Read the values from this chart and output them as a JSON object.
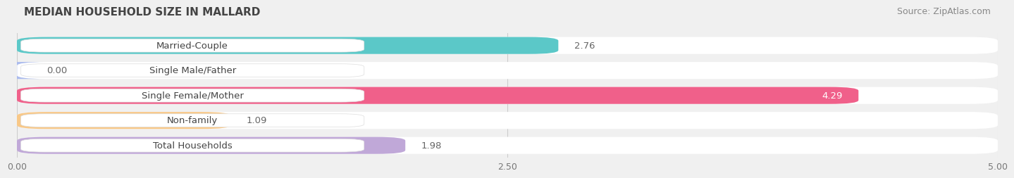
{
  "title": "MEDIAN HOUSEHOLD SIZE IN MALLARD",
  "source": "Source: ZipAtlas.com",
  "categories": [
    "Married-Couple",
    "Single Male/Father",
    "Single Female/Mother",
    "Non-family",
    "Total Households"
  ],
  "values": [
    2.76,
    0.0,
    4.29,
    1.09,
    1.98
  ],
  "bar_colors": [
    "#5BC8C8",
    "#AABBEE",
    "#F0608A",
    "#F8C888",
    "#C0A8D8"
  ],
  "xlim_min": 0,
  "xlim_max": 5.0,
  "xticks": [
    0.0,
    2.5,
    5.0
  ],
  "xtick_labels": [
    "0.00",
    "2.50",
    "5.00"
  ],
  "background_color": "#f0f0f0",
  "bar_bg_color": "#ffffff",
  "title_fontsize": 11,
  "source_fontsize": 9,
  "label_fontsize": 9.5,
  "value_fontsize": 9.5
}
